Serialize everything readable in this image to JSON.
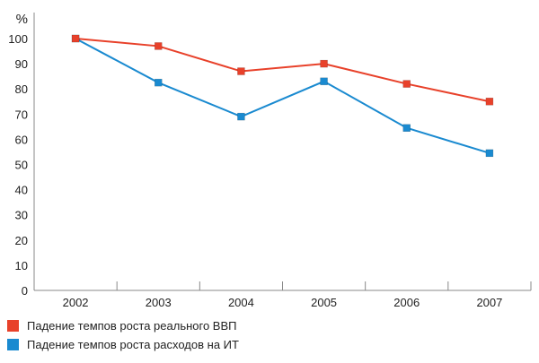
{
  "chart_data": {
    "type": "line",
    "title": "",
    "xlabel": "",
    "ylabel": "%",
    "ylim": [
      0,
      100
    ],
    "yticks": [
      0,
      10,
      20,
      30,
      40,
      50,
      60,
      70,
      80,
      90,
      100
    ],
    "categories": [
      "2002",
      "2003",
      "2004",
      "2005",
      "2006",
      "2007"
    ],
    "grid": false,
    "legend_position": "bottom-left",
    "series": [
      {
        "name": "Падение темпов роста реального ВВП",
        "color": "#e8412a",
        "values": [
          100,
          97,
          87,
          90,
          82,
          75
        ]
      },
      {
        "name": "Падение темпов роста расходов на ИТ",
        "color": "#1a8ad0",
        "values": [
          100,
          82.5,
          69,
          83,
          64.5,
          54.5
        ]
      }
    ]
  }
}
